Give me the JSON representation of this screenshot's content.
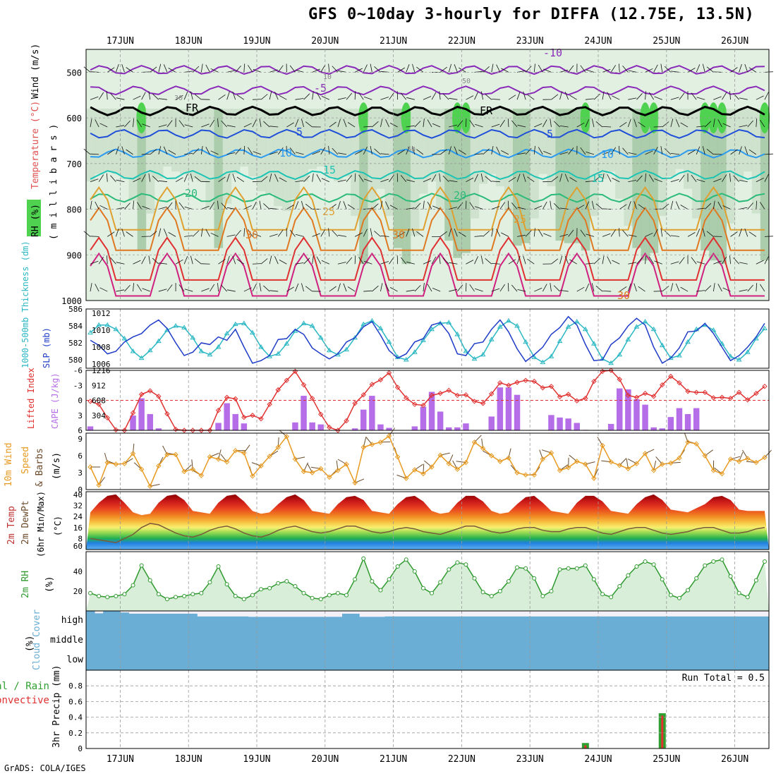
{
  "title": "GFS 0~10day 3-hourly for DIFFA (12.75E, 13.5N)",
  "credit": "GrADS: COLA/IGES",
  "dates": [
    "17JUN",
    "18JUN",
    "19JUN",
    "20JUN",
    "21JUN",
    "22JUN",
    "23JUN",
    "24JUN",
    "25JUN",
    "26JUN"
  ],
  "colors": {
    "panel_border": "#000000",
    "grid": "#9a9a9a",
    "slp": "#1f3cc8",
    "thickness": "#2bb8c4",
    "lifted_index": "#e03030",
    "cape": "#b56ee8",
    "wind_speed": "#e89a20",
    "wind_barb": "#6a4a2a",
    "rh": "#2f9a2f",
    "rh_fill_dark": "#8fcf8f",
    "rh_fill_light": "#d8eed8",
    "cloud": "#6aaed6",
    "clear": "#f4f0f8",
    "precip_total": "#2fa02f",
    "precip_conv": "#e03030",
    "temp_fill_top": "#8b0000",
    "dewpt_line": "#7a5a3a"
  },
  "panels": {
    "upper": {
      "label_rh": "RH (%)",
      "label_temp": "Temperature (°C)",
      "label_wind": "Wind (m/s)",
      "label_p": "( m i l l i b a r s )",
      "ticks": [
        "500",
        "600",
        "700",
        "800",
        "900",
        "1000"
      ],
      "contour_labels": [
        "-10",
        "-5",
        "FR",
        "FR",
        "5",
        "5",
        "10",
        "10",
        "15",
        "15",
        "20",
        "20",
        "25",
        "25",
        "30",
        "30",
        "30",
        "10",
        "30",
        "50",
        "50"
      ]
    },
    "pressure": {
      "label_left": "1000-500mb Thickness (dm)",
      "label_right": "SLP (mb)",
      "ticks_left": [
        "586",
        "584",
        "582",
        "580"
      ],
      "ticks_right": [
        "1012",
        "1010",
        "1008",
        "1006"
      ]
    },
    "cape": {
      "label_left": "Lifted Index",
      "label_right": "CAPE (J/kg)",
      "ticks_left": [
        "-6",
        "-3",
        "0",
        "3",
        "6"
      ],
      "ticks_right": [
        "1216",
        "912",
        "608",
        "304"
      ]
    },
    "wind10": {
      "label_a": "10m Wind",
      "label_b": "Speed",
      "label_c": "& Barbs",
      "label_d": "(m/s)",
      "ticks": [
        "9",
        "6",
        "3",
        "0"
      ]
    },
    "temp2m": {
      "label_a": "2m Temp",
      "label_b": "2m DewPt",
      "label_c": "(6hr Min/Max)",
      "label_d": "(°C)",
      "ticks": [
        "40",
        "32",
        "24",
        "16",
        "8",
        "60"
      ]
    },
    "rh2m": {
      "label_a": "2m RH",
      "label_b": "(%)",
      "ticks": [
        "40",
        "20"
      ]
    },
    "cloud": {
      "label_a": "Cloud Cover",
      "label_b": "(%)",
      "levels": [
        "high",
        "middle",
        "low"
      ]
    },
    "precip": {
      "label_a": "3hr Precip (mm)",
      "label_b": "Total / Rain",
      "label_c": "Convective",
      "run_total": "Run Total = 0.5",
      "ticks": [
        "0.8",
        "0.6",
        "0.4",
        "0.2",
        "0"
      ]
    }
  },
  "chart_data": {
    "type": "meteogram",
    "x_start": "16JUN 12Z",
    "step_hours": 3,
    "slp_mb": [
      1008.8,
      1008.2,
      1007.2,
      1007.5,
      1008.6,
      1009.2,
      1009.6,
      1010.6,
      1011.2,
      1010.2,
      1008.5,
      1007.0,
      1007.4,
      1008.5,
      1008.3,
      1009.2,
      1008.8,
      1010.1,
      1008.0,
      1006.1,
      1006.4,
      1007.0,
      1008.9,
      1009.0,
      1010.1,
      1009.5,
      1007.9,
      1007.2,
      1006.6,
      1007.2,
      1008.6,
      1009.1,
      1010.4,
      1011.0,
      1009.4,
      1007.6,
      1006.7,
      1007.2,
      1008.6,
      1009.0,
      1010.6,
      1010.9,
      1009.6,
      1007.2,
      1007.0,
      1008.4,
      1008.6,
      1010.1,
      1011.2,
      1009.8,
      1007.8,
      1006.3,
      1007.1,
      1008.0,
      1009.5,
      1010.3,
      1011.6,
      1010.6,
      1008.3,
      1006.4,
      1006.5,
      1008.3,
      1009.1,
      1010.5,
      1011.4,
      1010.6,
      1008.0,
      1006.1,
      1006.7,
      1007.9,
      1009.8,
      1009.9,
      1010.8,
      1009.6,
      1008.0,
      1006.4,
      1007.0,
      1008.0,
      1009.2,
      1010.8
    ],
    "thickness_dm": [
      583.2,
      584.1,
      584.1,
      583.6,
      582.5,
      581.0,
      580.2,
      581.1,
      582.2,
      583.5,
      584.0,
      583.8,
      582.6,
      581.0,
      580.6,
      581.5,
      583.1,
      584.2,
      584.3,
      583.2,
      581.5,
      580.4,
      580.7,
      581.9,
      583.4,
      584.3,
      584.0,
      582.6,
      581.1,
      580.6,
      581.2,
      582.6,
      584.2,
      584.6,
      583.7,
      582.1,
      580.3,
      580.0,
      580.9,
      582.3,
      583.6,
      584.3,
      584.4,
      583.0,
      581.0,
      580.1,
      580.6,
      582.4,
      583.9,
      584.6,
      584.0,
      582.1,
      580.3,
      579.7,
      580.4,
      582.2,
      583.9,
      584.5,
      583.6,
      581.9,
      580.1,
      579.6,
      580.6,
      582.4,
      583.9,
      584.5,
      583.6,
      581.7,
      580.2,
      580.5,
      582.1,
      583.6,
      584.1,
      583.5,
      581.9,
      580.4,
      580.0,
      580.9,
      582.5,
      583.7
    ],
    "lifted_index": [
      0.2,
      0.8,
      3.5,
      5.9,
      6.0,
      2.5,
      -1.2,
      -1.9,
      -0.8,
      2.7,
      5.8,
      6.0,
      6.0,
      6.0,
      6.0,
      2.0,
      -0.6,
      -0.3,
      3.4,
      3.0,
      3.7,
      0.8,
      -2.1,
      -4.0,
      -5.8,
      -3.1,
      -0.4,
      2.8,
      5.4,
      6.0,
      4.1,
      0.6,
      -1.1,
      -3.2,
      -4.1,
      -5.5,
      -2.6,
      -0.5,
      0.8,
      1.0,
      -1.0,
      -1.4,
      -2.0,
      -1.0,
      -1.1,
      0.2,
      0.6,
      -1.3,
      -3.5,
      -3.0,
      -3.6,
      -4.0,
      -3.8,
      -2.5,
      -2.8,
      -0.7,
      -1.2,
      0.1,
      -0.4,
      -3.8,
      -5.8,
      -6.0,
      -4.2,
      -1.0,
      -0.6,
      -1.4,
      -0.8,
      -3.1,
      -4.8,
      -3.5,
      -1.8,
      -1.6,
      -1.6,
      -0.5,
      -0.6,
      -0.4,
      -1.6,
      -0.1,
      -1.4,
      -2.8
    ],
    "cape_jkg": [
      80,
      0,
      0,
      0,
      0,
      300,
      650,
      330,
      40,
      0,
      0,
      0,
      0,
      0,
      0,
      150,
      550,
      330,
      140,
      0,
      0,
      0,
      0,
      0,
      160,
      700,
      160,
      120,
      0,
      0,
      0,
      40,
      420,
      700,
      120,
      50,
      0,
      0,
      80,
      480,
      780,
      380,
      60,
      60,
      140,
      0,
      0,
      280,
      870,
      870,
      720,
      0,
      0,
      0,
      310,
      260,
      240,
      150,
      10,
      0,
      0,
      130,
      850,
      830,
      630,
      520,
      60,
      40,
      270,
      450,
      330,
      450,
      0,
      0,
      0,
      0,
      0,
      0,
      0,
      0
    ],
    "wind_speed_ms": [
      4.0,
      0.8,
      4.8,
      4.5,
      4.6,
      6.4,
      3.6,
      0.6,
      4.2,
      6.2,
      6.2,
      3.2,
      3.6,
      2.5,
      5.8,
      5.4,
      4.9,
      6.9,
      6.5,
      2.4,
      4.2,
      5.9,
      7.5,
      9.4,
      5.4,
      3.2,
      3.0,
      3.7,
      2.2,
      3.4,
      4.5,
      1.2,
      7.5,
      8.0,
      8.4,
      9.5,
      5.8,
      2.0,
      3.5,
      2.8,
      4.0,
      6.1,
      4.6,
      3.6,
      4.8,
      8.4,
      7.3,
      6.0,
      5.0,
      5.6,
      3.0,
      2.6,
      2.6,
      5.4,
      6.5,
      3.4,
      3.9,
      5.0,
      4.5,
      2.0,
      7.8,
      4.9,
      4.3,
      3.7,
      4.6,
      6.4,
      3.4,
      4.5,
      4.7,
      5.6,
      8.4,
      8.1,
      6.0,
      3.4,
      2.8,
      5.4,
      5.0,
      5.5,
      4.8,
      5.7
    ],
    "temp_max_c": [
      27,
      34,
      39,
      40,
      34,
      27,
      25,
      26,
      34,
      39,
      40,
      36,
      28,
      27,
      26,
      34,
      39,
      40,
      35,
      28,
      26,
      27,
      33,
      38,
      40,
      36,
      28,
      27,
      26,
      33,
      38,
      39,
      36,
      28,
      27,
      26,
      33,
      38,
      39,
      35,
      28,
      26,
      27,
      34,
      39,
      39,
      35,
      28,
      26,
      27,
      33,
      38,
      39,
      34,
      28,
      27,
      26,
      34,
      39,
      39,
      35,
      28,
      27,
      26,
      33,
      38,
      40,
      36,
      29,
      28,
      27,
      30,
      33,
      38,
      39,
      36,
      29,
      28,
      28,
      28
    ],
    "dewpt_c": [
      8,
      7,
      6,
      5,
      8,
      11,
      16,
      19,
      18,
      15,
      12,
      10,
      9,
      11,
      14,
      16,
      17,
      15,
      12,
      10,
      9,
      11,
      14,
      16,
      17,
      15,
      13,
      12,
      13,
      15,
      17,
      17,
      15,
      13,
      12,
      13,
      15,
      16,
      15,
      13,
      12,
      11,
      13,
      15,
      17,
      17,
      15,
      13,
      12,
      13,
      15,
      16,
      16,
      14,
      13,
      13,
      15,
      16,
      16,
      14,
      12,
      11,
      13,
      15,
      16,
      16,
      14,
      12,
      11,
      12,
      13,
      15,
      16,
      16,
      14,
      12,
      12,
      13,
      15,
      16
    ],
    "rh2m_pct": [
      18,
      15,
      14,
      15,
      17,
      26,
      46,
      31,
      17,
      12,
      14,
      15,
      17,
      18,
      29,
      45,
      27,
      15,
      12,
      16,
      22,
      23,
      28,
      30,
      25,
      18,
      13,
      12,
      16,
      18,
      16,
      32,
      53,
      30,
      21,
      32,
      45,
      52,
      40,
      23,
      18,
      29,
      42,
      49,
      47,
      33,
      19,
      15,
      20,
      30,
      44,
      43,
      33,
      15,
      20,
      42,
      43,
      43,
      46,
      32,
      17,
      14,
      25,
      36,
      45,
      50,
      47,
      32,
      16,
      13,
      21,
      33,
      46,
      50,
      52,
      35,
      18,
      14,
      31,
      50
    ],
    "precip_total_mm": [
      0,
      0,
      0,
      0,
      0,
      0,
      0,
      0,
      0,
      0,
      0,
      0,
      0,
      0,
      0,
      0,
      0,
      0,
      0,
      0,
      0,
      0,
      0,
      0,
      0,
      0,
      0,
      0,
      0,
      0,
      0,
      0,
      0,
      0,
      0,
      0,
      0,
      0,
      0,
      0,
      0,
      0,
      0,
      0,
      0,
      0,
      0,
      0,
      0,
      0,
      0,
      0,
      0,
      0,
      0,
      0,
      0,
      0,
      0.07,
      0,
      0,
      0,
      0,
      0,
      0,
      0,
      0,
      0.45,
      0,
      0,
      0,
      0,
      0,
      0,
      0,
      0,
      0,
      0,
      0,
      0
    ],
    "precip_conv_mm": [
      0,
      0,
      0,
      0,
      0,
      0,
      0,
      0,
      0,
      0,
      0,
      0,
      0,
      0,
      0,
      0,
      0,
      0,
      0,
      0,
      0,
      0,
      0,
      0,
      0,
      0,
      0,
      0,
      0,
      0,
      0,
      0,
      0,
      0,
      0,
      0,
      0,
      0,
      0,
      0,
      0,
      0,
      0,
      0,
      0,
      0,
      0,
      0,
      0,
      0,
      0,
      0,
      0,
      0,
      0,
      0,
      0,
      0,
      0.04,
      0,
      0,
      0,
      0,
      0,
      0,
      0,
      0,
      0.42,
      0,
      0,
      0,
      0,
      0,
      0,
      0,
      0,
      0,
      0,
      0,
      0
    ],
    "cloud_high_pct": [
      100,
      88,
      100,
      100,
      92,
      86,
      86,
      86,
      86,
      86,
      86,
      86,
      86,
      72,
      72,
      72,
      72,
      72,
      72,
      70,
      70,
      70,
      70,
      70,
      70,
      70,
      70,
      70,
      70,
      70,
      86,
      86,
      70,
      70,
      70,
      72,
      72,
      72,
      72,
      72,
      72,
      72,
      72,
      72,
      72,
      72,
      72,
      72,
      72,
      72,
      72,
      72,
      72,
      72,
      72,
      72,
      72,
      72,
      72,
      72,
      72,
      72,
      72,
      72,
      72,
      72,
      72,
      72,
      72,
      72,
      72,
      72,
      72,
      72,
      72,
      72,
      72,
      72,
      72,
      72
    ],
    "cloud_mid_pct": [
      100,
      100,
      100,
      100,
      100,
      100,
      100,
      100,
      100,
      100,
      100,
      100,
      100,
      100,
      100,
      100,
      100,
      100,
      100,
      100,
      100,
      100,
      100,
      100,
      100,
      100,
      100,
      100,
      100,
      100,
      100,
      100,
      100,
      100,
      100,
      100,
      100,
      100,
      100,
      100,
      100,
      100,
      100,
      100,
      100,
      100,
      100,
      100,
      100,
      100,
      100,
      100,
      100,
      100,
      100,
      100,
      100,
      100,
      100,
      100,
      100,
      100,
      100,
      100,
      100,
      100,
      100,
      100,
      100,
      100,
      100,
      100,
      100,
      100,
      100,
      100,
      100,
      100,
      100,
      100
    ],
    "cloud_low_pct": [
      100,
      100,
      100,
      100,
      100,
      100,
      100,
      100,
      100,
      100,
      100,
      100,
      100,
      100,
      100,
      100,
      100,
      100,
      100,
      100,
      100,
      100,
      100,
      100,
      100,
      100,
      100,
      100,
      100,
      100,
      100,
      100,
      100,
      100,
      100,
      100,
      100,
      100,
      100,
      100,
      100,
      100,
      100,
      100,
      100,
      100,
      100,
      100,
      100,
      100,
      100,
      100,
      100,
      100,
      100,
      100,
      100,
      100,
      100,
      100,
      100,
      100,
      100,
      100,
      100,
      100,
      100,
      100,
      100,
      100,
      100,
      100,
      100,
      100,
      100,
      100,
      100,
      100,
      100,
      100
    ],
    "axes": {
      "pressure_mb": [
        450,
        1000
      ],
      "slp_mb": [
        1005.5,
        1012.5
      ],
      "thickness_dm": [
        579,
        586
      ],
      "lifted_index": [
        -6,
        6
      ],
      "cape_jkg": [
        0,
        1216
      ],
      "wind_ms": [
        0,
        10
      ],
      "temp_c": [
        0,
        42
      ],
      "rh_pct": [
        0,
        60
      ],
      "precip_mm": [
        0,
        1.0
      ]
    }
  }
}
